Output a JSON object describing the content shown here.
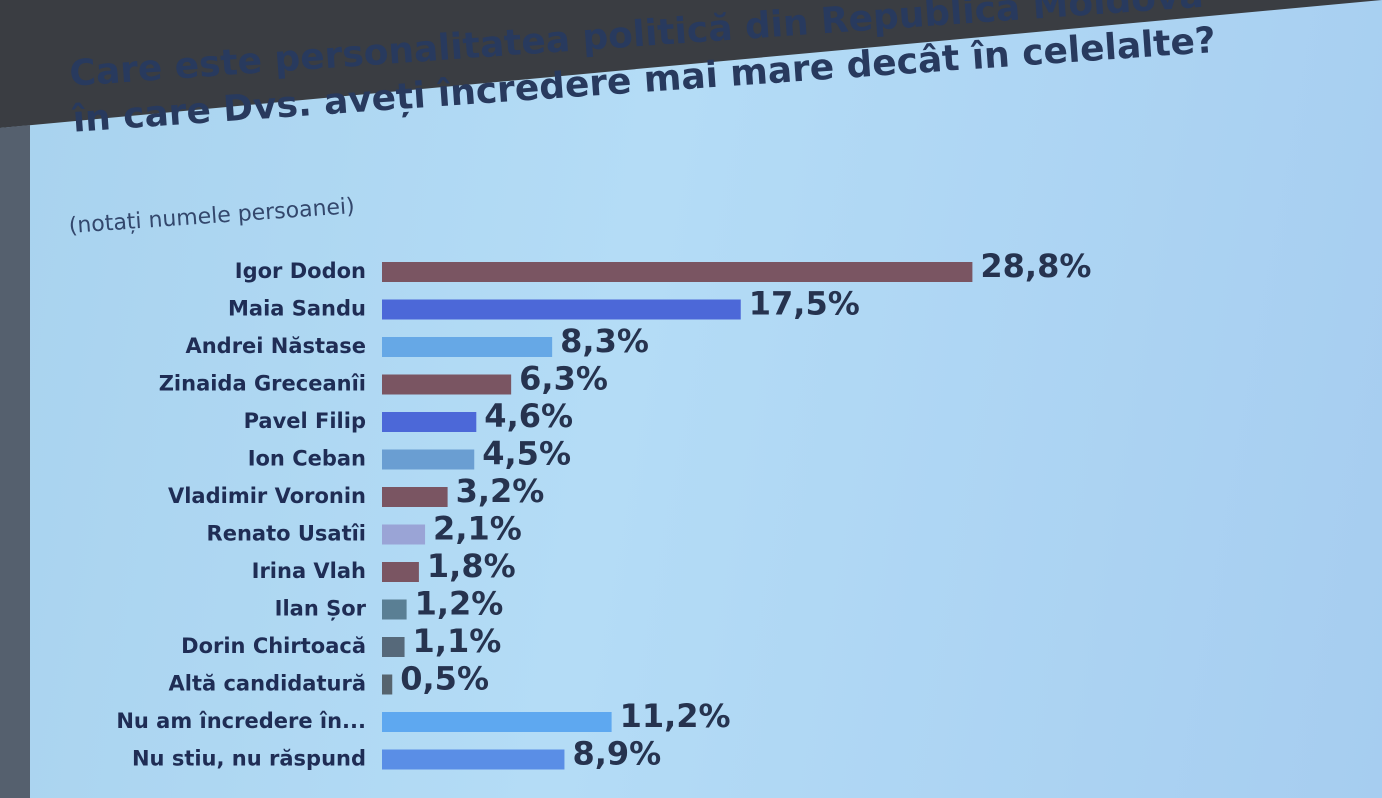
{
  "chart_data": {
    "type": "bar",
    "orientation": "horizontal",
    "title": "Care este personalitatea politică din Republica Moldova în care Dvs. aveți încredere mai mare decât în celelalte?",
    "subtitle": "(notați numele persoanei)",
    "categories": [
      "Igor Dodon",
      "Maia Sandu",
      "Andrei Năstase",
      "Zinaida Greceanîi",
      "Pavel Filip",
      "Ion Ceban",
      "Vladimir Voronin",
      "Renato Usatîi",
      "Irina Vlah",
      "Ilan Șor",
      "Dorin Chirtoacă",
      "Altă candidatură",
      "Nu am încredere în...",
      "Nu stiu, nu răspund"
    ],
    "values": [
      28.8,
      17.5,
      8.3,
      6.3,
      4.6,
      4.5,
      3.2,
      2.1,
      1.8,
      1.2,
      1.1,
      0.5,
      11.2,
      8.9
    ],
    "value_labels": [
      "28,8%",
      "17,5%",
      "8,3%",
      "6,3%",
      "4,6%",
      "4,5%",
      "3,2%",
      "2,1%",
      "1,8%",
      "1,2%",
      "1,1%",
      "0,5%",
      "11,2%",
      "8,9%"
    ],
    "colors": [
      "#7a5562",
      "#4c68d8",
      "#66a8e6",
      "#7a5562",
      "#4c68d8",
      "#6a9ed2",
      "#7a5562",
      "#9aa4d6",
      "#7a5562",
      "#5a7f94",
      "#56697a",
      "#56646e",
      "#5ea8f0",
      "#5a8ee6"
    ]
  }
}
